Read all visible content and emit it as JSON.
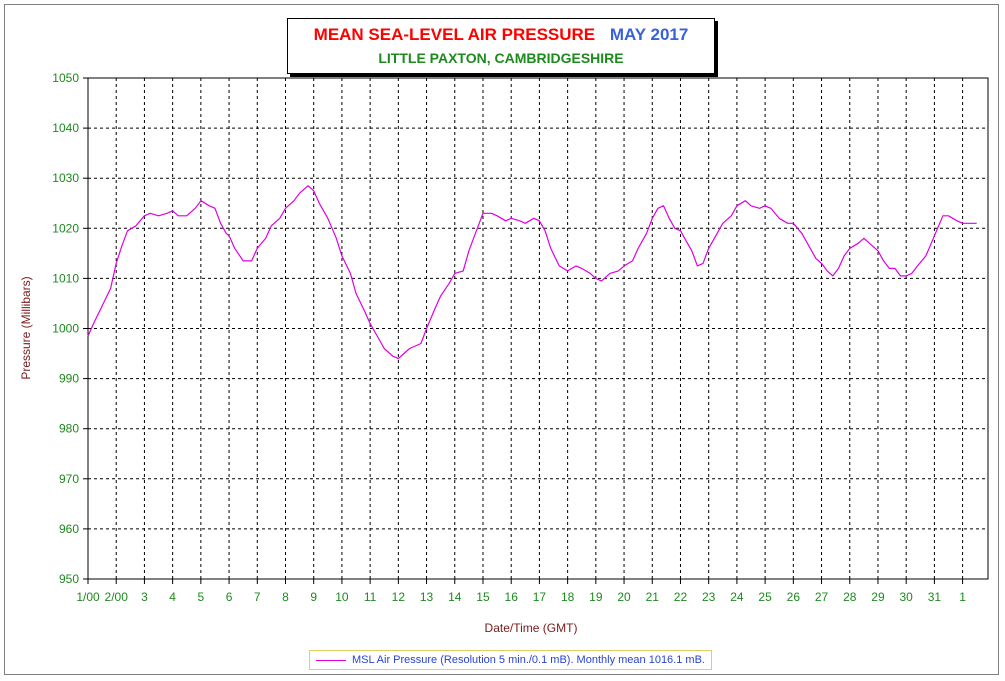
{
  "title": {
    "main": "MEAN SEA-LEVEL AIR PRESSURE",
    "date": "MAY 2017",
    "subtitle": "LITTLE PAXTON, CAMBRIDGESHIRE"
  },
  "colors": {
    "series": "#e000e0",
    "axis_text": "#1d8a1d",
    "ylabel": "#7a1a1a",
    "xlabel": "#7a1a1a",
    "legend_text": "#2a44d0"
  },
  "legend_label": "MSL Air Pressure (Resolution 5 min./0.1 mB). Monthly mean 1016.1 mB.",
  "chart_data": {
    "type": "line",
    "xlabel": "Date/Time (GMT)",
    "ylabel": "Pressure (Millibars)",
    "ylim": [
      950,
      1050
    ],
    "yticks": [
      950,
      960,
      970,
      980,
      990,
      1000,
      1010,
      1020,
      1030,
      1040,
      1050
    ],
    "xlim": [
      1,
      32.9
    ],
    "xticks": [
      {
        "x": 1,
        "label": "1/00"
      },
      {
        "x": 2,
        "label": "2/00"
      },
      {
        "x": 3,
        "label": "3"
      },
      {
        "x": 4,
        "label": "4"
      },
      {
        "x": 5,
        "label": "5"
      },
      {
        "x": 6,
        "label": "6"
      },
      {
        "x": 7,
        "label": "7"
      },
      {
        "x": 8,
        "label": "8"
      },
      {
        "x": 9,
        "label": "9"
      },
      {
        "x": 10,
        "label": "10"
      },
      {
        "x": 11,
        "label": "11"
      },
      {
        "x": 12,
        "label": "12"
      },
      {
        "x": 13,
        "label": "13"
      },
      {
        "x": 14,
        "label": "14"
      },
      {
        "x": 15,
        "label": "15"
      },
      {
        "x": 16,
        "label": "16"
      },
      {
        "x": 17,
        "label": "17"
      },
      {
        "x": 18,
        "label": "18"
      },
      {
        "x": 19,
        "label": "19"
      },
      {
        "x": 20,
        "label": "20"
      },
      {
        "x": 21,
        "label": "21"
      },
      {
        "x": 22,
        "label": "22"
      },
      {
        "x": 23,
        "label": "23"
      },
      {
        "x": 24,
        "label": "24"
      },
      {
        "x": 25,
        "label": "25"
      },
      {
        "x": 26,
        "label": "26"
      },
      {
        "x": 27,
        "label": "27"
      },
      {
        "x": 28,
        "label": "28"
      },
      {
        "x": 29,
        "label": "29"
      },
      {
        "x": 30,
        "label": "30"
      },
      {
        "x": 31,
        "label": "31"
      },
      {
        "x": 32,
        "label": "1"
      }
    ],
    "grid": true,
    "legend_position": "bottom",
    "series": [
      {
        "name": "MSL Air Pressure",
        "points": [
          [
            1.0,
            998.5
          ],
          [
            1.2,
            1001
          ],
          [
            1.5,
            1004.5
          ],
          [
            1.8,
            1008
          ],
          [
            2.0,
            1013
          ],
          [
            2.2,
            1016.5
          ],
          [
            2.4,
            1019.5
          ],
          [
            2.7,
            1020.5
          ],
          [
            3.0,
            1022.5
          ],
          [
            3.2,
            1023
          ],
          [
            3.5,
            1022.5
          ],
          [
            3.8,
            1023
          ],
          [
            4.0,
            1023.5
          ],
          [
            4.2,
            1022.5
          ],
          [
            4.5,
            1022.5
          ],
          [
            4.8,
            1024
          ],
          [
            5.0,
            1025.5
          ],
          [
            5.3,
            1024.5
          ],
          [
            5.5,
            1024
          ],
          [
            5.7,
            1021
          ],
          [
            5.9,
            1019
          ],
          [
            6.0,
            1018.5
          ],
          [
            6.2,
            1016
          ],
          [
            6.5,
            1013.5
          ],
          [
            6.8,
            1013.5
          ],
          [
            7.0,
            1016
          ],
          [
            7.3,
            1018
          ],
          [
            7.5,
            1020.5
          ],
          [
            7.8,
            1022
          ],
          [
            8.0,
            1024
          ],
          [
            8.3,
            1025.5
          ],
          [
            8.5,
            1027
          ],
          [
            8.8,
            1028.5
          ],
          [
            9.0,
            1027.5
          ],
          [
            9.2,
            1025
          ],
          [
            9.5,
            1022
          ],
          [
            9.8,
            1018
          ],
          [
            10.0,
            1014.5
          ],
          [
            10.3,
            1011
          ],
          [
            10.5,
            1007
          ],
          [
            10.8,
            1003.5
          ],
          [
            11.0,
            1001
          ],
          [
            11.3,
            998
          ],
          [
            11.5,
            996
          ],
          [
            11.8,
            994.5
          ],
          [
            12.0,
            994
          ],
          [
            12.2,
            995
          ],
          [
            12.4,
            996
          ],
          [
            12.6,
            996.5
          ],
          [
            12.8,
            997
          ],
          [
            13.0,
            1000
          ],
          [
            13.3,
            1004
          ],
          [
            13.5,
            1006.5
          ],
          [
            13.8,
            1009
          ],
          [
            14.0,
            1011
          ],
          [
            14.3,
            1011.5
          ],
          [
            14.5,
            1015.5
          ],
          [
            14.8,
            1020
          ],
          [
            15.0,
            1023
          ],
          [
            15.3,
            1023
          ],
          [
            15.5,
            1022.5
          ],
          [
            15.8,
            1021.5
          ],
          [
            16.0,
            1022
          ],
          [
            16.3,
            1021.5
          ],
          [
            16.5,
            1021
          ],
          [
            16.8,
            1022
          ],
          [
            17.0,
            1021.5
          ],
          [
            17.2,
            1019.5
          ],
          [
            17.4,
            1016
          ],
          [
            17.7,
            1012.5
          ],
          [
            18.0,
            1011.5
          ],
          [
            18.3,
            1012.5
          ],
          [
            18.5,
            1012
          ],
          [
            18.8,
            1011
          ],
          [
            19.0,
            1010
          ],
          [
            19.2,
            1009.5
          ],
          [
            19.5,
            1011
          ],
          [
            19.8,
            1011.5
          ],
          [
            20.0,
            1012.5
          ],
          [
            20.3,
            1013.5
          ],
          [
            20.5,
            1016
          ],
          [
            20.8,
            1019
          ],
          [
            21.0,
            1022
          ],
          [
            21.2,
            1024
          ],
          [
            21.4,
            1024.5
          ],
          [
            21.6,
            1022
          ],
          [
            21.8,
            1020
          ],
          [
            22.0,
            1019.5
          ],
          [
            22.2,
            1017.5
          ],
          [
            22.4,
            1015.5
          ],
          [
            22.6,
            1012.5
          ],
          [
            22.8,
            1013
          ],
          [
            23.0,
            1016
          ],
          [
            23.3,
            1019
          ],
          [
            23.5,
            1021
          ],
          [
            23.8,
            1022.5
          ],
          [
            24.0,
            1024.5
          ],
          [
            24.3,
            1025.5
          ],
          [
            24.5,
            1024.5
          ],
          [
            24.8,
            1024
          ],
          [
            25.0,
            1024.5
          ],
          [
            25.2,
            1024
          ],
          [
            25.5,
            1022
          ],
          [
            25.8,
            1021
          ],
          [
            26.0,
            1021
          ],
          [
            26.3,
            1019
          ],
          [
            26.5,
            1017
          ],
          [
            26.8,
            1014
          ],
          [
            27.0,
            1013
          ],
          [
            27.2,
            1011.5
          ],
          [
            27.4,
            1010.5
          ],
          [
            27.6,
            1012
          ],
          [
            27.8,
            1014.5
          ],
          [
            28.0,
            1016
          ],
          [
            28.3,
            1017
          ],
          [
            28.5,
            1018
          ],
          [
            28.7,
            1017
          ],
          [
            29.0,
            1015.5
          ],
          [
            29.2,
            1013.5
          ],
          [
            29.4,
            1012
          ],
          [
            29.6,
            1012
          ],
          [
            29.8,
            1010.5
          ],
          [
            30.0,
            1010.5
          ],
          [
            30.2,
            1011
          ],
          [
            30.4,
            1012.5
          ],
          [
            30.7,
            1014.5
          ],
          [
            31.0,
            1018.5
          ],
          [
            31.3,
            1022.5
          ],
          [
            31.5,
            1022.5
          ],
          [
            31.8,
            1021.5
          ],
          [
            32.0,
            1021
          ],
          [
            32.3,
            1021
          ],
          [
            32.5,
            1021
          ]
        ]
      }
    ]
  }
}
